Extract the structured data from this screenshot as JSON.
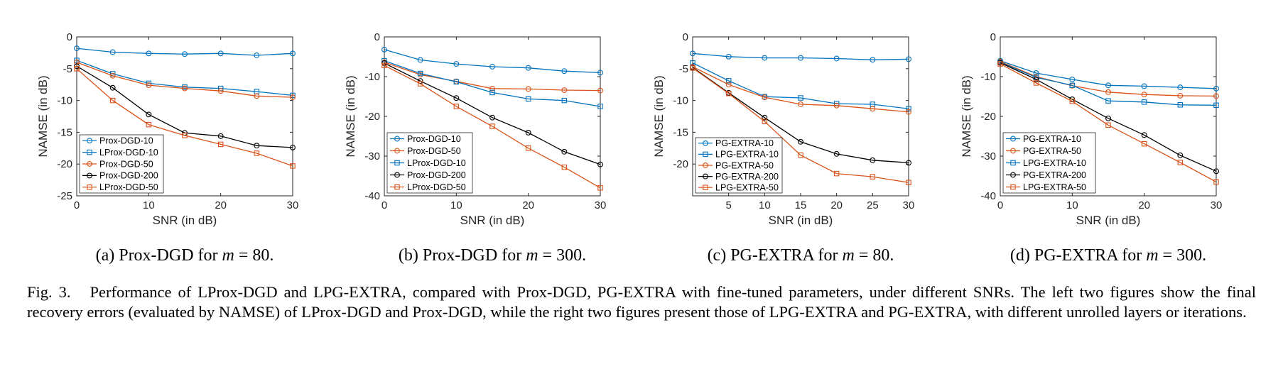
{
  "figure_caption": {
    "label": "Fig. 3.",
    "text": "Performance of LProx-DGD and LPG-EXTRA, compared with Prox-DGD, PG-EXTRA with fine-tuned parameters, under different SNRs. The left two figures show the final recovery errors (evaluated by NAMSE) of LProx-DGD and Prox-DGD, while the right two figures present those of LPG-EXTRA and PG-EXTRA, with different unrolled layers or iterations."
  },
  "colors": {
    "blue": "#0072BD",
    "orange": "#D95319",
    "black": "#000000"
  },
  "chart_data": [
    {
      "type": "line",
      "subcaption": {
        "prefix": "(a) Prox-DGD for ",
        "var": "m",
        "eq": " = 80."
      },
      "xlabel": "SNR (in dB)",
      "ylabel": "NAMSE (in dB)",
      "xlim": [
        0,
        30
      ],
      "ylim": [
        -25,
        0
      ],
      "xticks": [
        0,
        10,
        20,
        30
      ],
      "yticks": [
        0,
        -5,
        -10,
        -15,
        -20,
        -25
      ],
      "grid": false,
      "legend_position": "bottom-left",
      "x": [
        0,
        5,
        10,
        15,
        20,
        25,
        30
      ],
      "series": [
        {
          "name": "Prox-DGD-10",
          "color": "#0072BD",
          "marker": "circle",
          "values": [
            -1.8,
            -2.4,
            -2.6,
            -2.7,
            -2.6,
            -2.9,
            -2.6
          ]
        },
        {
          "name": "LProx-DGD-10",
          "color": "#0072BD",
          "marker": "square",
          "values": [
            -3.7,
            -5.8,
            -7.3,
            -7.9,
            -8.1,
            -8.6,
            -9.2
          ]
        },
        {
          "name": "Prox-DGD-50",
          "color": "#D95319",
          "marker": "circle",
          "values": [
            -4.0,
            -6.1,
            -7.6,
            -8.1,
            -8.5,
            -9.3,
            -9.5
          ]
        },
        {
          "name": "Prox-DGD-200",
          "color": "#000000",
          "marker": "circle",
          "values": [
            -4.6,
            -8.0,
            -12.2,
            -15.1,
            -15.6,
            -17.1,
            -17.4
          ]
        },
        {
          "name": "LProx-DGD-50",
          "color": "#D95319",
          "marker": "square",
          "values": [
            -5.0,
            -10.0,
            -13.8,
            -15.5,
            -16.9,
            -18.3,
            -20.3
          ]
        }
      ]
    },
    {
      "type": "line",
      "subcaption": {
        "prefix": "(b) Prox-DGD for ",
        "var": "m",
        "eq": " = 300."
      },
      "xlabel": "SNR (in dB)",
      "ylabel": "NAMSE (in dB)",
      "xlim": [
        0,
        30
      ],
      "ylim": [
        -40,
        0
      ],
      "xticks": [
        0,
        10,
        20,
        30
      ],
      "yticks": [
        0,
        -10,
        -20,
        -30,
        -40
      ],
      "grid": false,
      "legend_position": "bottom-left",
      "x": [
        0,
        5,
        10,
        15,
        20,
        25,
        30
      ],
      "series": [
        {
          "name": "Prox-DGD-10",
          "color": "#0072BD",
          "marker": "circle",
          "values": [
            -3.2,
            -5.8,
            -6.8,
            -7.5,
            -7.8,
            -8.6,
            -9.0
          ]
        },
        {
          "name": "Prox-DGD-50",
          "color": "#D95319",
          "marker": "circle",
          "values": [
            -6.4,
            -9.5,
            -11.2,
            -13.0,
            -13.1,
            -13.4,
            -13.5
          ]
        },
        {
          "name": "LProx-DGD-10",
          "color": "#0072BD",
          "marker": "square",
          "values": [
            -6.0,
            -9.2,
            -11.3,
            -14.0,
            -15.6,
            -16.0,
            -17.5
          ]
        },
        {
          "name": "Prox-DGD-200",
          "color": "#000000",
          "marker": "circle",
          "values": [
            -6.6,
            -11.1,
            -15.4,
            -20.3,
            -24.1,
            -28.9,
            -32.1
          ]
        },
        {
          "name": "LProx-DGD-50",
          "color": "#D95319",
          "marker": "square",
          "values": [
            -7.2,
            -11.8,
            -17.5,
            -22.5,
            -28.0,
            -32.8,
            -38.0
          ]
        }
      ]
    },
    {
      "type": "line",
      "subcaption": {
        "prefix": "(c) PG-EXTRA for ",
        "var": "m",
        "eq": " = 80."
      },
      "xlabel": "SNR (in dB)",
      "ylabel": "NAMSE (in dB)",
      "xlim": [
        0,
        30
      ],
      "ylim": [
        -25,
        0
      ],
      "xticks": [
        5,
        10,
        15,
        20,
        25,
        30
      ],
      "yticks": [
        0,
        -5,
        -10,
        -15,
        -20
      ],
      "grid": false,
      "legend_position": "bottom-left",
      "x": [
        0,
        5,
        10,
        15,
        20,
        25,
        30
      ],
      "series": [
        {
          "name": "PG-EXTRA-10",
          "color": "#0072BD",
          "marker": "circle",
          "values": [
            -2.6,
            -3.1,
            -3.3,
            -3.3,
            -3.4,
            -3.6,
            -3.5
          ]
        },
        {
          "name": "LPG-EXTRA-10",
          "color": "#0072BD",
          "marker": "square",
          "values": [
            -4.1,
            -6.9,
            -9.4,
            -9.6,
            -10.5,
            -10.6,
            -11.3
          ]
        },
        {
          "name": "PG-EXTRA-50",
          "color": "#D95319",
          "marker": "circle",
          "values": [
            -4.7,
            -7.5,
            -9.5,
            -10.6,
            -10.8,
            -11.3,
            -11.8
          ]
        },
        {
          "name": "PG-EXTRA-200",
          "color": "#000000",
          "marker": "circle",
          "values": [
            -4.8,
            -8.8,
            -12.7,
            -16.5,
            -18.4,
            -19.4,
            -19.8
          ]
        },
        {
          "name": "LPG-EXTRA-50",
          "color": "#D95319",
          "marker": "square",
          "values": [
            -4.9,
            -8.9,
            -13.3,
            -18.6,
            -21.5,
            -22.0,
            -22.9
          ]
        }
      ]
    },
    {
      "type": "line",
      "subcaption": {
        "prefix": "(d) PG-EXTRA for ",
        "var": "m",
        "eq": " = 300."
      },
      "xlabel": "SNR (in dB)",
      "ylabel": "NAMSE (in dB)",
      "xlim": [
        0,
        30
      ],
      "ylim": [
        -40,
        0
      ],
      "xticks": [
        0,
        10,
        20,
        30
      ],
      "yticks": [
        0,
        -10,
        -20,
        -30,
        -40
      ],
      "grid": false,
      "legend_position": "bottom-left",
      "x": [
        0,
        5,
        10,
        15,
        20,
        25,
        30
      ],
      "series": [
        {
          "name": "PG-EXTRA-10",
          "color": "#0072BD",
          "marker": "circle",
          "values": [
            -6.0,
            -9.1,
            -10.7,
            -12.2,
            -12.4,
            -12.7,
            -13.0
          ]
        },
        {
          "name": "PG-EXTRA-50",
          "color": "#D95319",
          "marker": "circle",
          "values": [
            -6.2,
            -10.0,
            -12.3,
            -13.9,
            -14.5,
            -14.8,
            -14.9
          ]
        },
        {
          "name": "LPG-EXTRA-10",
          "color": "#0072BD",
          "marker": "square",
          "values": [
            -6.4,
            -10.2,
            -12.2,
            -16.1,
            -16.4,
            -17.1,
            -17.2
          ]
        },
        {
          "name": "PG-EXTRA-200",
          "color": "#000000",
          "marker": "circle",
          "values": [
            -6.5,
            -10.7,
            -15.7,
            -20.5,
            -24.7,
            -29.8,
            -33.8
          ]
        },
        {
          "name": "LPG-EXTRA-50",
          "color": "#D95319",
          "marker": "square",
          "values": [
            -6.8,
            -11.6,
            -16.2,
            -22.2,
            -26.9,
            -31.6,
            -36.5
          ]
        }
      ]
    }
  ]
}
